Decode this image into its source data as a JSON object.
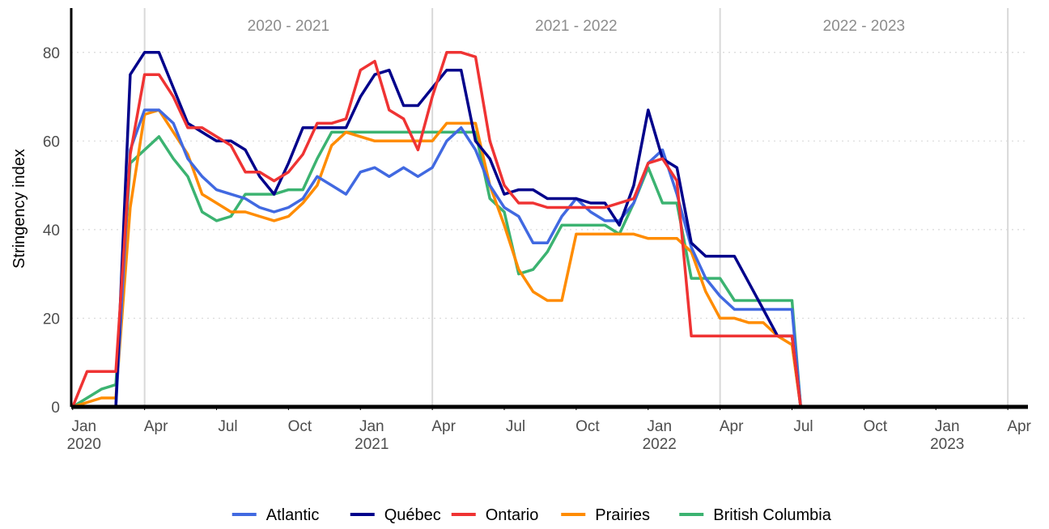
{
  "chart_data": {
    "type": "line",
    "y_label": "Stringency index",
    "x": [
      2020.0,
      2020.05,
      2020.1,
      2020.15,
      2020.2,
      2020.25,
      2020.3,
      2020.35,
      2020.4,
      2020.45,
      2020.5,
      2020.55,
      2020.6,
      2020.65,
      2020.7,
      2020.75,
      2020.8,
      2020.85,
      2020.9,
      2020.95,
      2021.0,
      2021.05,
      2021.1,
      2021.15,
      2021.2,
      2021.25,
      2021.3,
      2021.35,
      2021.4,
      2021.45,
      2021.5,
      2021.55,
      2021.6,
      2021.65,
      2021.7,
      2021.75,
      2021.8,
      2021.85,
      2021.9,
      2021.95,
      2022.0,
      2022.05,
      2022.1,
      2022.15,
      2022.2,
      2022.25,
      2022.3,
      2022.35,
      2022.4,
      2022.45,
      2022.5,
      2022.53
    ],
    "series": [
      {
        "name": "British Columbia",
        "color": "#3cb371",
        "values": [
          0,
          2,
          4,
          5,
          55,
          58,
          61,
          56,
          52,
          44,
          42,
          43,
          48,
          48,
          48,
          49,
          49,
          56,
          62,
          62,
          62,
          62,
          62,
          62,
          62,
          62,
          62,
          62,
          62,
          47,
          44,
          30,
          31,
          35,
          41,
          41,
          41,
          41,
          39,
          46,
          54,
          46,
          46,
          29,
          29,
          29,
          24,
          24,
          24,
          24,
          24,
          0
        ]
      },
      {
        "name": "Prairies",
        "color": "#ff8c00",
        "values": [
          0,
          1,
          2,
          2,
          45,
          66,
          67,
          62,
          57,
          48,
          46,
          44,
          44,
          43,
          42,
          43,
          46,
          50,
          59,
          62,
          61,
          60,
          60,
          60,
          60,
          60,
          64,
          64,
          64,
          50,
          41,
          31,
          26,
          24,
          24,
          39,
          39,
          39,
          39,
          39,
          38,
          38,
          38,
          35,
          26,
          20,
          20,
          19,
          19,
          16,
          14,
          0
        ]
      },
      {
        "name": "Atlantic",
        "color": "#4169e1",
        "values": [
          0,
          0,
          0,
          0,
          58,
          67,
          67,
          64,
          56,
          52,
          49,
          48,
          47,
          45,
          44,
          45,
          47,
          52,
          50,
          48,
          53,
          54,
          52,
          54,
          52,
          54,
          60,
          63,
          58,
          50,
          45,
          43,
          37,
          37,
          43,
          47,
          44,
          42,
          42,
          46,
          55,
          58,
          48,
          36,
          29,
          25,
          22,
          22,
          22,
          22,
          22,
          0
        ]
      },
      {
        "name": "Québec",
        "color": "#00008b",
        "values": [
          0,
          0,
          0,
          0,
          75,
          80,
          80,
          72,
          64,
          62,
          60,
          60,
          58,
          52,
          48,
          55,
          63,
          63,
          63,
          63,
          70,
          75,
          76,
          68,
          68,
          72,
          76,
          76,
          60,
          56,
          48,
          49,
          49,
          47,
          47,
          47,
          46,
          46,
          41,
          50,
          67,
          56,
          54,
          37,
          34,
          34,
          34,
          28,
          22,
          16,
          16,
          0
        ]
      },
      {
        "name": "Ontario",
        "color": "#ef3333",
        "values": [
          0,
          8,
          8,
          8,
          57,
          75,
          75,
          70,
          63,
          63,
          61,
          59,
          53,
          53,
          51,
          53,
          57,
          64,
          64,
          65,
          76,
          78,
          67,
          65,
          58,
          70,
          80,
          80,
          79,
          60,
          50,
          46,
          46,
          45,
          45,
          45,
          45,
          45,
          46,
          47,
          55,
          56,
          51,
          16,
          16,
          16,
          16,
          16,
          16,
          16,
          16,
          0
        ]
      }
    ],
    "legend_order": [
      2,
      3,
      4,
      1,
      0
    ],
    "xlim": [
      2019.995,
      2023.32
    ],
    "xticks": [
      {
        "value": 2020.0,
        "label": "Jan\n2020"
      },
      {
        "value": 2020.25,
        "label": "Apr"
      },
      {
        "value": 2020.5,
        "label": "Jul"
      },
      {
        "value": 2020.75,
        "label": "Oct"
      },
      {
        "value": 2021.0,
        "label": "Jan\n2021"
      },
      {
        "value": 2021.25,
        "label": "Apr"
      },
      {
        "value": 2021.5,
        "label": "Jul"
      },
      {
        "value": 2021.75,
        "label": "Oct"
      },
      {
        "value": 2022.0,
        "label": "Jan\n2022"
      },
      {
        "value": 2022.25,
        "label": "Apr"
      },
      {
        "value": 2022.5,
        "label": "Jul"
      },
      {
        "value": 2022.75,
        "label": "Oct"
      },
      {
        "value": 2023.0,
        "label": "Jan\n2023"
      },
      {
        "value": 2023.25,
        "label": "Apr"
      }
    ],
    "ylim": [
      0,
      90
    ],
    "yticks": [
      0,
      20,
      40,
      60,
      80
    ],
    "grid": true,
    "vlines": [
      2020.25,
      2021.25,
      2022.25,
      2023.25
    ],
    "period_labels": [
      "2020 - 2021",
      "2021 - 2022",
      "2022 - 2023"
    ],
    "legend_position": "bottom"
  }
}
